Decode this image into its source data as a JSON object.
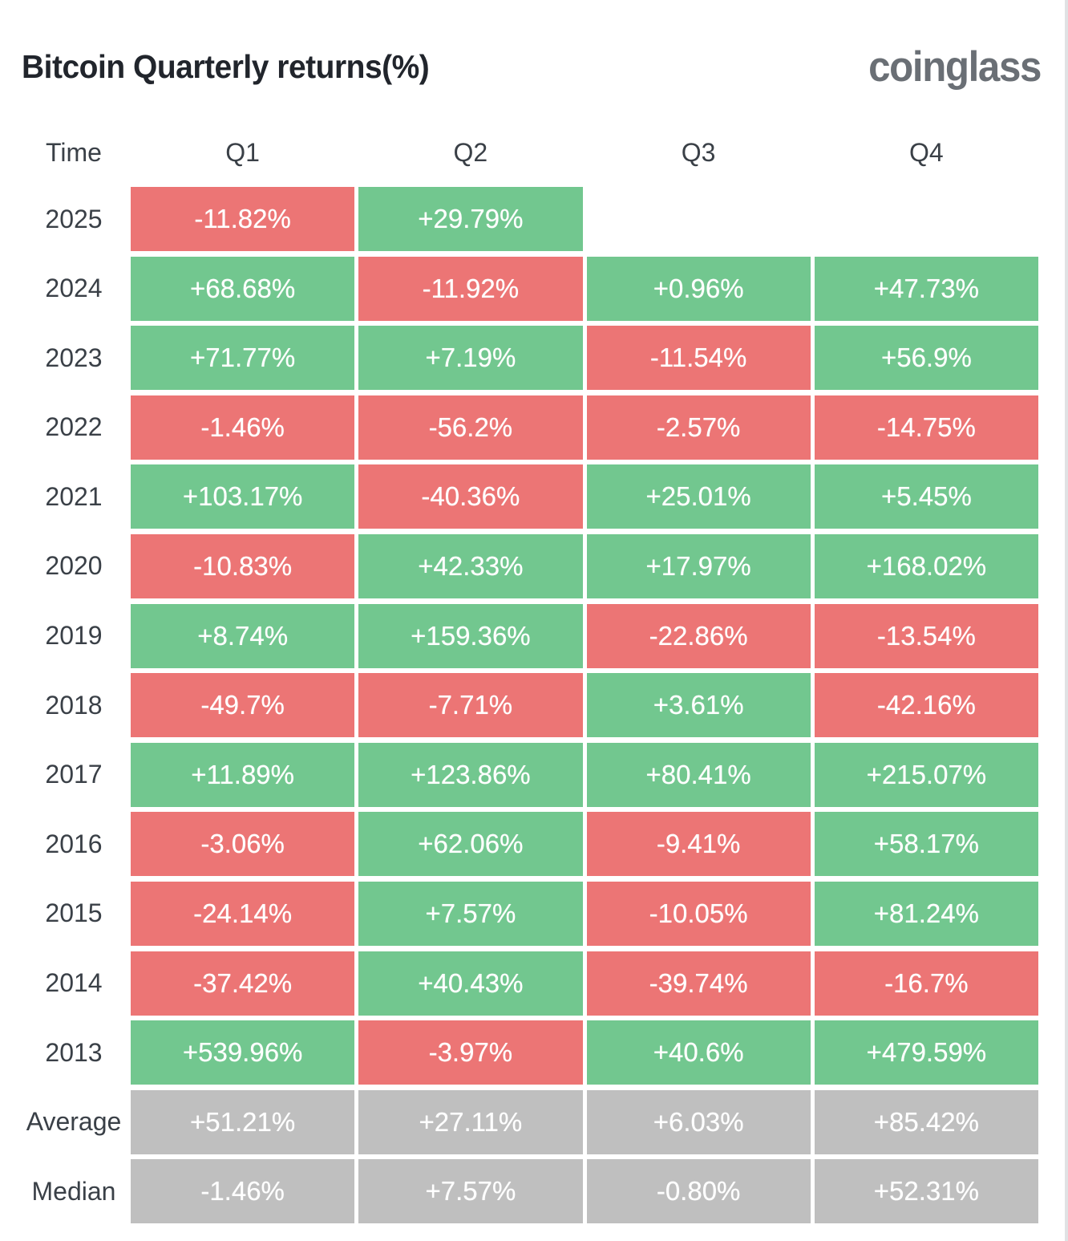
{
  "header": {
    "title": "Bitcoin Quarterly returns(%)",
    "logo": "coinglass"
  },
  "colors": {
    "positive": "#72c78f",
    "negative": "#ec7575",
    "neutral": "#bfbfbf",
    "logo_gray": "#6a6f75"
  },
  "table": {
    "columns": [
      "Time",
      "Q1",
      "Q2",
      "Q3",
      "Q4"
    ],
    "rows": [
      {
        "label": "2025",
        "cells": [
          {
            "text": "-11.82%",
            "tone": "negative"
          },
          {
            "text": "+29.79%",
            "tone": "positive"
          },
          {
            "text": "",
            "tone": "empty"
          },
          {
            "text": "",
            "tone": "empty"
          }
        ]
      },
      {
        "label": "2024",
        "cells": [
          {
            "text": "+68.68%",
            "tone": "positive"
          },
          {
            "text": "-11.92%",
            "tone": "negative"
          },
          {
            "text": "+0.96%",
            "tone": "positive"
          },
          {
            "text": "+47.73%",
            "tone": "positive"
          }
        ]
      },
      {
        "label": "2023",
        "cells": [
          {
            "text": "+71.77%",
            "tone": "positive"
          },
          {
            "text": "+7.19%",
            "tone": "positive"
          },
          {
            "text": "-11.54%",
            "tone": "negative"
          },
          {
            "text": "+56.9%",
            "tone": "positive"
          }
        ]
      },
      {
        "label": "2022",
        "cells": [
          {
            "text": "-1.46%",
            "tone": "negative"
          },
          {
            "text": "-56.2%",
            "tone": "negative"
          },
          {
            "text": "-2.57%",
            "tone": "negative"
          },
          {
            "text": "-14.75%",
            "tone": "negative"
          }
        ]
      },
      {
        "label": "2021",
        "cells": [
          {
            "text": "+103.17%",
            "tone": "positive"
          },
          {
            "text": "-40.36%",
            "tone": "negative"
          },
          {
            "text": "+25.01%",
            "tone": "positive"
          },
          {
            "text": "+5.45%",
            "tone": "positive"
          }
        ]
      },
      {
        "label": "2020",
        "cells": [
          {
            "text": "-10.83%",
            "tone": "negative"
          },
          {
            "text": "+42.33%",
            "tone": "positive"
          },
          {
            "text": "+17.97%",
            "tone": "positive"
          },
          {
            "text": "+168.02%",
            "tone": "positive"
          }
        ]
      },
      {
        "label": "2019",
        "cells": [
          {
            "text": "+8.74%",
            "tone": "positive"
          },
          {
            "text": "+159.36%",
            "tone": "positive"
          },
          {
            "text": "-22.86%",
            "tone": "negative"
          },
          {
            "text": "-13.54%",
            "tone": "negative"
          }
        ]
      },
      {
        "label": "2018",
        "cells": [
          {
            "text": "-49.7%",
            "tone": "negative"
          },
          {
            "text": "-7.71%",
            "tone": "negative"
          },
          {
            "text": "+3.61%",
            "tone": "positive"
          },
          {
            "text": "-42.16%",
            "tone": "negative"
          }
        ]
      },
      {
        "label": "2017",
        "cells": [
          {
            "text": "+11.89%",
            "tone": "positive"
          },
          {
            "text": "+123.86%",
            "tone": "positive"
          },
          {
            "text": "+80.41%",
            "tone": "positive"
          },
          {
            "text": "+215.07%",
            "tone": "positive"
          }
        ]
      },
      {
        "label": "2016",
        "cells": [
          {
            "text": "-3.06%",
            "tone": "negative"
          },
          {
            "text": "+62.06%",
            "tone": "positive"
          },
          {
            "text": "-9.41%",
            "tone": "negative"
          },
          {
            "text": "+58.17%",
            "tone": "positive"
          }
        ]
      },
      {
        "label": "2015",
        "cells": [
          {
            "text": "-24.14%",
            "tone": "negative"
          },
          {
            "text": "+7.57%",
            "tone": "positive"
          },
          {
            "text": "-10.05%",
            "tone": "negative"
          },
          {
            "text": "+81.24%",
            "tone": "positive"
          }
        ]
      },
      {
        "label": "2014",
        "cells": [
          {
            "text": "-37.42%",
            "tone": "negative"
          },
          {
            "text": "+40.43%",
            "tone": "positive"
          },
          {
            "text": "-39.74%",
            "tone": "negative"
          },
          {
            "text": "-16.7%",
            "tone": "negative"
          }
        ]
      },
      {
        "label": "2013",
        "cells": [
          {
            "text": "+539.96%",
            "tone": "positive"
          },
          {
            "text": "-3.97%",
            "tone": "negative"
          },
          {
            "text": "+40.6%",
            "tone": "positive"
          },
          {
            "text": "+479.59%",
            "tone": "positive"
          }
        ]
      },
      {
        "label": "Average",
        "cells": [
          {
            "text": "+51.21%",
            "tone": "neutral"
          },
          {
            "text": "+27.11%",
            "tone": "neutral"
          },
          {
            "text": "+6.03%",
            "tone": "neutral"
          },
          {
            "text": "+85.42%",
            "tone": "neutral"
          }
        ]
      },
      {
        "label": "Median",
        "cells": [
          {
            "text": "-1.46%",
            "tone": "neutral"
          },
          {
            "text": "+7.57%",
            "tone": "neutral"
          },
          {
            "text": "-0.80%",
            "tone": "neutral"
          },
          {
            "text": "+52.31%",
            "tone": "neutral"
          }
        ]
      }
    ]
  },
  "chart_data": {
    "type": "heatmap",
    "title": "Bitcoin Quarterly returns(%)",
    "columns": [
      "Q1",
      "Q2",
      "Q3",
      "Q4"
    ],
    "rows": [
      "2025",
      "2024",
      "2023",
      "2022",
      "2021",
      "2020",
      "2019",
      "2018",
      "2017",
      "2016",
      "2015",
      "2014",
      "2013",
      "Average",
      "Median"
    ],
    "values_pct": [
      [
        -11.82,
        29.79,
        null,
        null
      ],
      [
        68.68,
        -11.92,
        0.96,
        47.73
      ],
      [
        71.77,
        7.19,
        -11.54,
        56.9
      ],
      [
        -1.46,
        -56.2,
        -2.57,
        -14.75
      ],
      [
        103.17,
        -40.36,
        25.01,
        5.45
      ],
      [
        -10.83,
        42.33,
        17.97,
        168.02
      ],
      [
        8.74,
        159.36,
        -22.86,
        -13.54
      ],
      [
        -49.7,
        -7.71,
        3.61,
        -42.16
      ],
      [
        11.89,
        123.86,
        80.41,
        215.07
      ],
      [
        -3.06,
        62.06,
        -9.41,
        58.17
      ],
      [
        -24.14,
        7.57,
        -10.05,
        81.24
      ],
      [
        -37.42,
        40.43,
        -39.74,
        -16.7
      ],
      [
        539.96,
        -3.97,
        40.6,
        479.59
      ],
      [
        51.21,
        27.11,
        6.03,
        85.42
      ],
      [
        -1.46,
        7.57,
        -0.8,
        52.31
      ]
    ],
    "color_rule": "green = positive return, red = negative return, gray = Average/Median summary rows, blank = no data yet",
    "legend_position": "none",
    "grid": false
  }
}
